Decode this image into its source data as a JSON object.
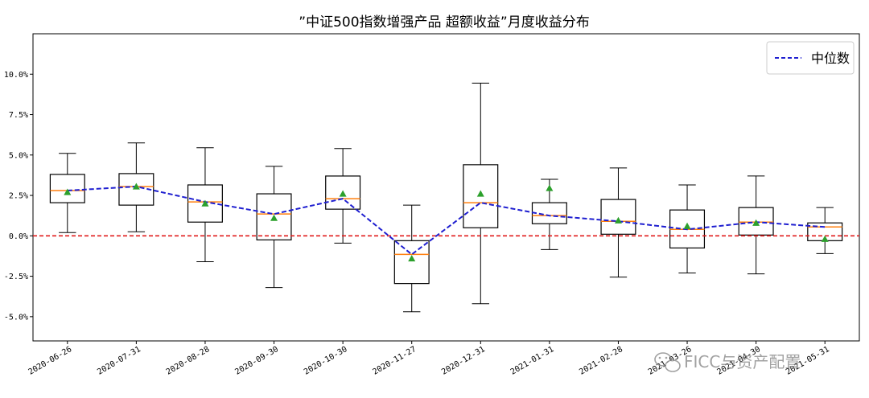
{
  "chart_data": {
    "type": "box",
    "title": "”中证500指数增强产品 超额收益”月度收益分布",
    "xlabel": "",
    "ylabel": "",
    "ylim": [
      -6.5,
      12.5
    ],
    "yticks": [
      -5.0,
      -2.5,
      0.0,
      2.5,
      5.0,
      7.5,
      10.0
    ],
    "ytick_labels": [
      "-5.0%",
      "-2.5%",
      "0.0%",
      "2.5%",
      "5.0%",
      "7.5%",
      "10.0%"
    ],
    "categories": [
      "2020-06-26",
      "2020-07-31",
      "2020-08-28",
      "2020-09-30",
      "2020-10-30",
      "2020-11-27",
      "2020-12-31",
      "2021-01-31",
      "2021-02-28",
      "2021-03-26",
      "2021-04-30",
      "2021-05-31"
    ],
    "boxes": [
      {
        "whisker_low": 0.2,
        "q1": 2.05,
        "median": 2.8,
        "q3": 3.8,
        "whisker_high": 5.1,
        "mean": 2.7
      },
      {
        "whisker_low": 0.25,
        "q1": 1.9,
        "median": 3.05,
        "q3": 3.85,
        "whisker_high": 5.75,
        "mean": 3.05
      },
      {
        "whisker_low": -1.6,
        "q1": 0.85,
        "median": 2.1,
        "q3": 3.15,
        "whisker_high": 5.45,
        "mean": 2.0
      },
      {
        "whisker_low": -3.2,
        "q1": -0.25,
        "median": 1.35,
        "q3": 2.6,
        "whisker_high": 4.3,
        "mean": 1.1
      },
      {
        "whisker_low": -0.45,
        "q1": 1.65,
        "median": 2.3,
        "q3": 3.7,
        "whisker_high": 5.4,
        "mean": 2.6
      },
      {
        "whisker_low": -4.7,
        "q1": -2.95,
        "median": -1.15,
        "q3": -0.3,
        "whisker_high": 1.9,
        "mean": -1.4
      },
      {
        "whisker_low": -4.2,
        "q1": 0.5,
        "median": 2.05,
        "q3": 4.4,
        "whisker_high": 9.45,
        "mean": 2.6
      },
      {
        "whisker_low": -0.85,
        "q1": 0.75,
        "median": 1.25,
        "q3": 2.05,
        "whisker_high": 3.5,
        "mean": 2.95
      },
      {
        "whisker_low": -2.55,
        "q1": 0.1,
        "median": 0.9,
        "q3": 2.25,
        "whisker_high": 4.2,
        "mean": 0.95
      },
      {
        "whisker_low": -2.3,
        "q1": -0.75,
        "median": 0.4,
        "q3": 1.6,
        "whisker_high": 3.15,
        "mean": 0.6
      },
      {
        "whisker_low": -2.35,
        "q1": 0.05,
        "median": 0.85,
        "q3": 1.75,
        "whisker_high": 3.7,
        "mean": 0.8
      },
      {
        "whisker_low": -1.1,
        "q1": -0.3,
        "median": 0.55,
        "q3": 0.8,
        "whisker_high": 1.75,
        "mean": -0.2
      }
    ],
    "series": [
      {
        "name": "中位数",
        "type": "line",
        "style": "dashed",
        "color": "#1f1fd0",
        "values": [
          2.8,
          3.05,
          2.1,
          1.35,
          2.3,
          -1.15,
          2.05,
          1.25,
          0.9,
          0.4,
          0.85,
          0.55
        ]
      }
    ],
    "reference_line": {
      "y": 0.0,
      "color": "#e01b1b",
      "style": "dashed"
    },
    "legend_position": "top-right",
    "grid": false,
    "colors": {
      "box": "#000000",
      "median_tick": "#ff7f0e",
      "mean_marker": "#2ca02c",
      "median_line": "#1f1fd0",
      "zero_line": "#e01b1b"
    },
    "watermark": "FICC与资产配置"
  }
}
